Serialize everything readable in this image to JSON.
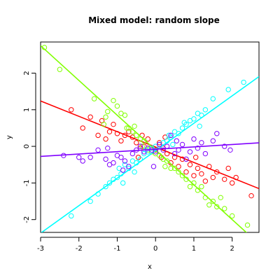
{
  "chart_data": {
    "type": "scatter",
    "title": "Mixed model: random slope",
    "xlabel": "x",
    "ylabel": "y",
    "xlim": [
      -3,
      2.7
    ],
    "ylim": [
      -2.35,
      2.85
    ],
    "grid": false,
    "x_ticks": [
      -3,
      -2,
      -1,
      0,
      1,
      2
    ],
    "y_ticks": [
      -2,
      -1,
      0,
      1,
      2
    ],
    "series": [
      {
        "color": "#ff0000",
        "line": {
          "intercept": -0.02,
          "slope": -0.42
        },
        "points": [
          [
            -2.2,
            1.0
          ],
          [
            -1.9,
            0.5
          ],
          [
            -1.7,
            0.8
          ],
          [
            -1.5,
            0.3
          ],
          [
            -1.4,
            0.7
          ],
          [
            -1.3,
            0.2
          ],
          [
            -1.2,
            0.4
          ],
          [
            -1.1,
            0.6
          ],
          [
            -1.0,
            0.35
          ],
          [
            -0.9,
            0.15
          ],
          [
            -0.8,
            0.3
          ],
          [
            -0.7,
            0.4
          ],
          [
            -0.6,
            0.25
          ],
          [
            -0.5,
            0.1
          ],
          [
            -0.4,
            -0.05
          ],
          [
            -0.35,
            0.3
          ],
          [
            -0.3,
            0.0
          ],
          [
            -0.2,
            0.2
          ],
          [
            -0.1,
            -0.15
          ],
          [
            0.0,
            -0.1
          ],
          [
            0.1,
            0.1
          ],
          [
            0.15,
            -0.3
          ],
          [
            0.2,
            -0.05
          ],
          [
            0.3,
            -0.2
          ],
          [
            0.4,
            -0.45
          ],
          [
            0.5,
            -0.3
          ],
          [
            0.6,
            -0.55
          ],
          [
            0.7,
            -0.35
          ],
          [
            0.8,
            -0.7
          ],
          [
            0.9,
            -0.5
          ],
          [
            1.0,
            -0.8
          ],
          [
            1.1,
            -0.6
          ],
          [
            1.2,
            -0.75
          ],
          [
            1.3,
            -0.95
          ],
          [
            1.4,
            -0.55
          ],
          [
            1.5,
            -0.85
          ],
          [
            1.6,
            -0.7
          ],
          [
            1.8,
            -0.9
          ],
          [
            1.9,
            -0.6
          ],
          [
            2.0,
            -1.0
          ],
          [
            2.1,
            -0.85
          ],
          [
            2.5,
            -1.35
          ],
          [
            -0.45,
            -0.3
          ],
          [
            0.25,
            0.25
          ],
          [
            1.05,
            -0.3
          ]
        ]
      },
      {
        "color": "#80ff00",
        "line": {
          "intercept": -0.1,
          "slope": -0.95
        },
        "points": [
          [
            -2.9,
            2.7
          ],
          [
            -2.5,
            2.1
          ],
          [
            -1.6,
            1.3
          ],
          [
            -1.3,
            0.8
          ],
          [
            -1.25,
            0.95
          ],
          [
            -1.1,
            1.25
          ],
          [
            -1.0,
            1.1
          ],
          [
            -0.9,
            0.9
          ],
          [
            -0.8,
            0.85
          ],
          [
            -0.75,
            0.5
          ],
          [
            -0.7,
            0.5
          ],
          [
            -0.6,
            0.4
          ],
          [
            -0.5,
            0.3
          ],
          [
            -0.4,
            0.2
          ],
          [
            -0.35,
            0.0
          ],
          [
            -0.3,
            0.15
          ],
          [
            -0.2,
            -0.1
          ],
          [
            -0.15,
            -0.05
          ],
          [
            -0.1,
            -0.15
          ],
          [
            0.0,
            -0.2
          ],
          [
            0.1,
            -0.25
          ],
          [
            0.2,
            -0.35
          ],
          [
            0.3,
            -0.4
          ],
          [
            0.4,
            -0.6
          ],
          [
            0.5,
            -0.6
          ],
          [
            0.6,
            -0.7
          ],
          [
            0.7,
            -0.8
          ],
          [
            0.8,
            -0.9
          ],
          [
            0.9,
            -1.1
          ],
          [
            1.0,
            -1.0
          ],
          [
            1.1,
            -1.2
          ],
          [
            1.2,
            -1.1
          ],
          [
            1.3,
            -1.4
          ],
          [
            1.4,
            -1.6
          ],
          [
            1.5,
            -1.5
          ],
          [
            1.6,
            -1.65
          ],
          [
            1.7,
            -1.4
          ],
          [
            1.8,
            -1.7
          ],
          [
            2.0,
            -1.9
          ],
          [
            2.4,
            -2.15
          ],
          [
            -1.35,
            0.6
          ],
          [
            -0.55,
            0.55
          ],
          [
            0.25,
            -0.55
          ]
        ]
      },
      {
        "color": "#00ffff",
        "line": {
          "intercept": -0.12,
          "slope": 0.75
        },
        "points": [
          [
            -2.2,
            -1.9
          ],
          [
            -1.7,
            -1.5
          ],
          [
            -1.5,
            -1.3
          ],
          [
            -1.2,
            -1.0
          ],
          [
            -1.1,
            -0.9
          ],
          [
            -1.0,
            -0.85
          ],
          [
            -0.95,
            -0.6
          ],
          [
            -0.9,
            -0.75
          ],
          [
            -0.85,
            -1.0
          ],
          [
            -0.8,
            -0.5
          ],
          [
            -0.7,
            -0.6
          ],
          [
            -0.6,
            -0.4
          ],
          [
            -0.5,
            -0.45
          ],
          [
            -0.4,
            -0.35
          ],
          [
            -0.3,
            -0.2
          ],
          [
            -0.25,
            -0.1
          ],
          [
            -0.2,
            -0.15
          ],
          [
            -0.1,
            -0.05
          ],
          [
            0.0,
            0.0
          ],
          [
            0.1,
            0.05
          ],
          [
            0.2,
            0.1
          ],
          [
            0.3,
            0.15
          ],
          [
            0.35,
            0.3
          ],
          [
            0.4,
            0.25
          ],
          [
            0.5,
            0.4
          ],
          [
            0.6,
            0.35
          ],
          [
            0.7,
            0.5
          ],
          [
            0.75,
            0.65
          ],
          [
            0.8,
            0.6
          ],
          [
            0.9,
            0.7
          ],
          [
            1.0,
            0.75
          ],
          [
            1.1,
            0.9
          ],
          [
            1.2,
            0.85
          ],
          [
            1.3,
            1.0
          ],
          [
            1.5,
            1.3
          ],
          [
            1.9,
            1.55
          ],
          [
            2.3,
            1.75
          ],
          [
            -0.55,
            -0.7
          ],
          [
            0.45,
            0.05
          ],
          [
            1.15,
            0.55
          ],
          [
            -1.3,
            -1.1
          ]
        ]
      },
      {
        "color": "#8000ff",
        "line": {
          "intercept": -0.08,
          "slope": 0.065
        },
        "points": [
          [
            -2.4,
            -0.25
          ],
          [
            -2.0,
            -0.3
          ],
          [
            -1.9,
            -0.4
          ],
          [
            -1.7,
            -0.3
          ],
          [
            -1.5,
            -0.1
          ],
          [
            -1.3,
            -0.35
          ],
          [
            -1.2,
            -0.5
          ],
          [
            -1.1,
            -0.45
          ],
          [
            -1.0,
            -0.25
          ],
          [
            -0.9,
            -0.3
          ],
          [
            -0.85,
            -0.65
          ],
          [
            -0.8,
            -0.4
          ],
          [
            -0.7,
            -0.55
          ],
          [
            -0.6,
            -0.2
          ],
          [
            -0.5,
            -0.1
          ],
          [
            -0.4,
            0.0
          ],
          [
            -0.3,
            -0.15
          ],
          [
            -0.2,
            -0.05
          ],
          [
            -0.1,
            -0.1
          ],
          [
            0.0,
            -0.15
          ],
          [
            0.1,
            0.05
          ],
          [
            0.2,
            -0.1
          ],
          [
            0.3,
            0.0
          ],
          [
            0.4,
            0.3
          ],
          [
            0.5,
            -0.2
          ],
          [
            0.6,
            -0.1
          ],
          [
            0.7,
            0.05
          ],
          [
            0.8,
            -0.35
          ],
          [
            0.9,
            -0.15
          ],
          [
            1.0,
            0.2
          ],
          [
            1.1,
            -0.05
          ],
          [
            1.2,
            0.1
          ],
          [
            1.3,
            -0.2
          ],
          [
            1.5,
            0.15
          ],
          [
            1.6,
            0.35
          ],
          [
            1.8,
            0.0
          ],
          [
            1.95,
            -0.1
          ],
          [
            -1.25,
            -0.05
          ],
          [
            -0.05,
            -0.55
          ],
          [
            0.55,
            0.15
          ]
        ]
      }
    ]
  }
}
